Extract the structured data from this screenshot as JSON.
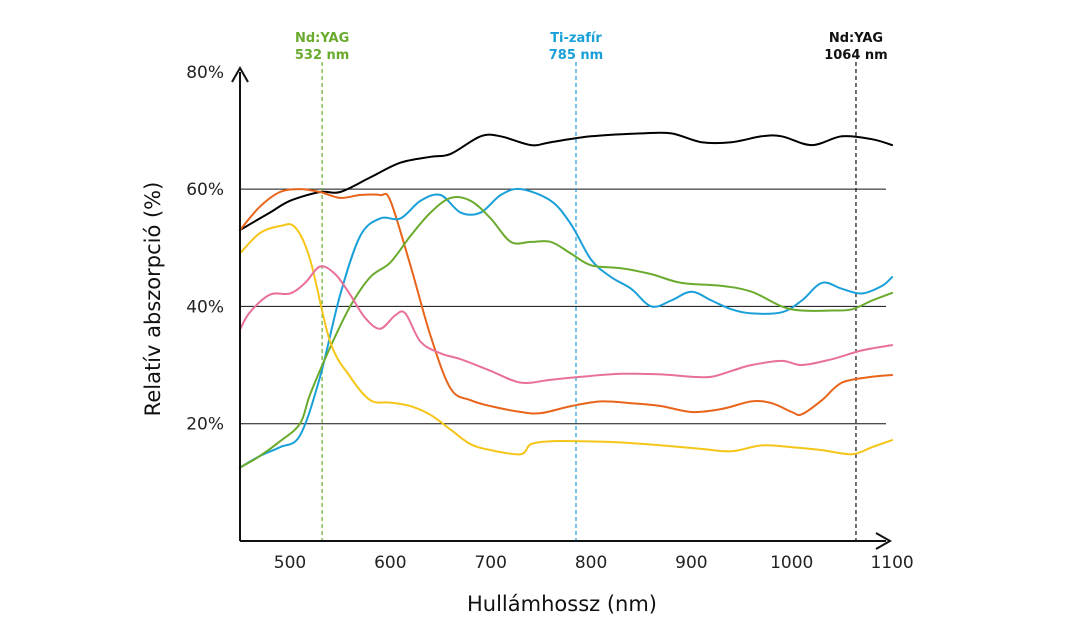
{
  "chart_data": {
    "type": "line",
    "xlabel": "Hullámhossz (nm)",
    "ylabel": "Relatív abszorpció (%)",
    "xlim": [
      450,
      1100
    ],
    "ylim": [
      0,
      80
    ],
    "x_ticks": [
      "500",
      "600",
      "700",
      "800",
      "900",
      "1000",
      "1100"
    ],
    "y_ticks": [
      "20%",
      "40%",
      "60%",
      "80%"
    ],
    "gridlines_y": [
      20,
      40,
      60
    ],
    "laser_markers": [
      {
        "name": "Nd:YAG",
        "wavelength_label": "532 nm",
        "x": 532,
        "color": "#6aab2e"
      },
      {
        "name": "Ti-zafír",
        "wavelength_label": "785 nm",
        "x": 785,
        "color": "#1aa0d8"
      },
      {
        "name": "Nd:YAG",
        "wavelength_label": "1064 nm",
        "x": 1064,
        "color": "#111111"
      }
    ],
    "series": [
      {
        "color": "#000000",
        "points": [
          [
            450,
            53
          ],
          [
            480,
            56
          ],
          [
            500,
            58
          ],
          [
            530,
            59.5
          ],
          [
            550,
            59.5
          ],
          [
            580,
            62
          ],
          [
            610,
            64.5
          ],
          [
            640,
            65.5
          ],
          [
            660,
            66
          ],
          [
            690,
            69
          ],
          [
            710,
            69
          ],
          [
            740,
            67.5
          ],
          [
            760,
            68
          ],
          [
            800,
            69
          ],
          [
            850,
            69.5
          ],
          [
            880,
            69.5
          ],
          [
            910,
            68
          ],
          [
            940,
            68
          ],
          [
            970,
            69
          ],
          [
            990,
            69
          ],
          [
            1020,
            67.5
          ],
          [
            1050,
            69
          ],
          [
            1080,
            68.5
          ],
          [
            1100,
            67.5
          ]
        ]
      },
      {
        "color": "#e8641a",
        "points": [
          [
            450,
            53
          ],
          [
            470,
            57
          ],
          [
            490,
            59.5
          ],
          [
            510,
            60
          ],
          [
            530,
            59.5
          ],
          [
            550,
            58.5
          ],
          [
            570,
            59
          ],
          [
            590,
            59
          ],
          [
            600,
            58
          ],
          [
            620,
            47
          ],
          [
            640,
            35
          ],
          [
            660,
            26
          ],
          [
            680,
            24
          ],
          [
            700,
            23
          ],
          [
            730,
            22
          ],
          [
            750,
            21.8
          ],
          [
            780,
            23
          ],
          [
            810,
            23.8
          ],
          [
            840,
            23.5
          ],
          [
            870,
            23
          ],
          [
            900,
            22
          ],
          [
            930,
            22.5
          ],
          [
            960,
            23.8
          ],
          [
            980,
            23.5
          ],
          [
            1000,
            22
          ],
          [
            1010,
            21.6
          ],
          [
            1030,
            24
          ],
          [
            1050,
            27
          ],
          [
            1080,
            28
          ],
          [
            1100,
            28.3
          ]
        ]
      },
      {
        "color": "#1aa0d8",
        "points": [
          [
            450,
            12.5
          ],
          [
            470,
            14.5
          ],
          [
            490,
            16
          ],
          [
            510,
            18
          ],
          [
            530,
            28
          ],
          [
            550,
            42
          ],
          [
            570,
            52
          ],
          [
            590,
            55
          ],
          [
            610,
            55
          ],
          [
            630,
            58
          ],
          [
            650,
            59
          ],
          [
            670,
            56
          ],
          [
            690,
            56
          ],
          [
            710,
            59
          ],
          [
            730,
            60
          ],
          [
            760,
            58
          ],
          [
            780,
            54
          ],
          [
            800,
            48
          ],
          [
            820,
            45
          ],
          [
            840,
            43
          ],
          [
            860,
            40
          ],
          [
            880,
            41
          ],
          [
            900,
            42.5
          ],
          [
            920,
            41
          ],
          [
            940,
            39.5
          ],
          [
            960,
            38.8
          ],
          [
            990,
            39
          ],
          [
            1010,
            41
          ],
          [
            1030,
            44
          ],
          [
            1050,
            43
          ],
          [
            1070,
            42.2
          ],
          [
            1090,
            43.5
          ],
          [
            1100,
            45
          ]
        ]
      },
      {
        "color": "#6aab2e",
        "points": [
          [
            450,
            12.5
          ],
          [
            470,
            14.5
          ],
          [
            490,
            17
          ],
          [
            510,
            20
          ],
          [
            520,
            25
          ],
          [
            540,
            33
          ],
          [
            560,
            40
          ],
          [
            580,
            45
          ],
          [
            600,
            47.5
          ],
          [
            620,
            52
          ],
          [
            640,
            56
          ],
          [
            660,
            58.5
          ],
          [
            680,
            58
          ],
          [
            700,
            55
          ],
          [
            720,
            51
          ],
          [
            740,
            51
          ],
          [
            760,
            51
          ],
          [
            780,
            49
          ],
          [
            800,
            47
          ],
          [
            830,
            46.5
          ],
          [
            860,
            45.5
          ],
          [
            890,
            44
          ],
          [
            930,
            43.5
          ],
          [
            960,
            42.5
          ],
          [
            990,
            40
          ],
          [
            1010,
            39.3
          ],
          [
            1040,
            39.3
          ],
          [
            1060,
            39.5
          ],
          [
            1080,
            41
          ],
          [
            1100,
            42.3
          ]
        ]
      },
      {
        "color": "#f5c518",
        "points": [
          [
            450,
            49
          ],
          [
            470,
            52.5
          ],
          [
            490,
            53.7
          ],
          [
            505,
            53.5
          ],
          [
            520,
            48
          ],
          [
            540,
            34
          ],
          [
            560,
            28
          ],
          [
            580,
            24
          ],
          [
            600,
            23.6
          ],
          [
            620,
            23
          ],
          [
            640,
            21.5
          ],
          [
            660,
            19
          ],
          [
            680,
            16.5
          ],
          [
            700,
            15.5
          ],
          [
            730,
            14.8
          ],
          [
            740,
            16.5
          ],
          [
            760,
            17
          ],
          [
            790,
            17
          ],
          [
            830,
            16.8
          ],
          [
            870,
            16.3
          ],
          [
            910,
            15.7
          ],
          [
            940,
            15.3
          ],
          [
            970,
            16.3
          ],
          [
            1000,
            16
          ],
          [
            1030,
            15.5
          ],
          [
            1060,
            14.8
          ],
          [
            1080,
            16
          ],
          [
            1100,
            17.2
          ]
        ]
      },
      {
        "color": "#e8709a",
        "points": [
          [
            450,
            36
          ],
          [
            460,
            39
          ],
          [
            480,
            42
          ],
          [
            500,
            42.2
          ],
          [
            515,
            44
          ],
          [
            530,
            46.8
          ],
          [
            545,
            45.5
          ],
          [
            560,
            42
          ],
          [
            575,
            38
          ],
          [
            590,
            36.2
          ],
          [
            605,
            38.5
          ],
          [
            615,
            38.8
          ],
          [
            630,
            34
          ],
          [
            650,
            32
          ],
          [
            670,
            31
          ],
          [
            700,
            29
          ],
          [
            730,
            27
          ],
          [
            760,
            27.5
          ],
          [
            790,
            28
          ],
          [
            830,
            28.5
          ],
          [
            870,
            28.4
          ],
          [
            900,
            28
          ],
          [
            920,
            28
          ],
          [
            940,
            29
          ],
          [
            960,
            30
          ],
          [
            990,
            30.7
          ],
          [
            1010,
            30
          ],
          [
            1040,
            31
          ],
          [
            1070,
            32.5
          ],
          [
            1100,
            33.4
          ]
        ]
      }
    ]
  }
}
